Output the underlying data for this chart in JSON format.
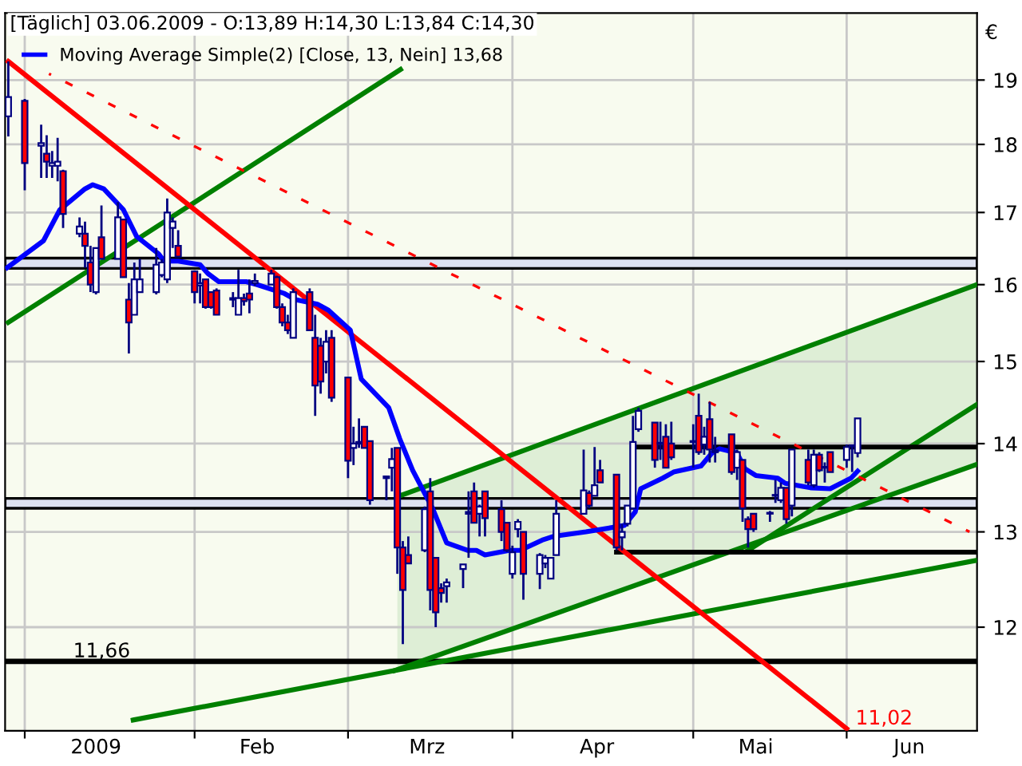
{
  "chart_data": {
    "type": "candlestick",
    "title": "[Täglich] 03.06.2009 - O:13,89 H:14,30 L:13,84 C:14,30",
    "ylabel": "€",
    "x": [
      "2008-12-30",
      "2009-01-02",
      "2009-01-05",
      "2009-01-06",
      "2009-01-07",
      "2009-01-08",
      "2009-01-09",
      "2009-01-12",
      "2009-01-13",
      "2009-01-14",
      "2009-01-15",
      "2009-01-16",
      "2009-01-19",
      "2009-01-20",
      "2009-01-21",
      "2009-01-22",
      "2009-01-23",
      "2009-01-26",
      "2009-01-27",
      "2009-01-28",
      "2009-01-29",
      "2009-01-30",
      "2009-02-02",
      "2009-02-03",
      "2009-02-04",
      "2009-02-05",
      "2009-02-06",
      "2009-02-09",
      "2009-02-10",
      "2009-02-11",
      "2009-02-12",
      "2009-02-13",
      "2009-02-16",
      "2009-02-17",
      "2009-02-18",
      "2009-02-19",
      "2009-02-20",
      "2009-02-23",
      "2009-02-24",
      "2009-02-25",
      "2009-02-26",
      "2009-02-27",
      "2009-03-02",
      "2009-03-03",
      "2009-03-04",
      "2009-03-05",
      "2009-03-06",
      "2009-03-09",
      "2009-03-10",
      "2009-03-11",
      "2009-03-12",
      "2009-03-13",
      "2009-03-16",
      "2009-03-17",
      "2009-03-18",
      "2009-03-19",
      "2009-03-20",
      "2009-03-23",
      "2009-03-24",
      "2009-03-25",
      "2009-03-26",
      "2009-03-27",
      "2009-03-30",
      "2009-03-31",
      "2009-04-01",
      "2009-04-02",
      "2009-04-03",
      "2009-04-06",
      "2009-04-07",
      "2009-04-08",
      "2009-04-09",
      "2009-04-14",
      "2009-04-15",
      "2009-04-16",
      "2009-04-17",
      "2009-04-20",
      "2009-04-21",
      "2009-04-22",
      "2009-04-23",
      "2009-04-24",
      "2009-04-27",
      "2009-04-28",
      "2009-04-29",
      "2009-04-30",
      "2009-05-04",
      "2009-05-05",
      "2009-05-06",
      "2009-05-07",
      "2009-05-08",
      "2009-05-11",
      "2009-05-12",
      "2009-05-13",
      "2009-05-14",
      "2009-05-15",
      "2009-05-18",
      "2009-05-19",
      "2009-05-20",
      "2009-05-21",
      "2009-05-22",
      "2009-05-25",
      "2009-05-26",
      "2009-05-27",
      "2009-05-28",
      "2009-05-29",
      "2009-06-01",
      "2009-06-02",
      "2009-06-03"
    ],
    "ohlc": [
      [
        18.43,
        19.3,
        18.12,
        18.73
      ],
      [
        18.67,
        18.7,
        17.32,
        17.72
      ],
      [
        17.98,
        18.3,
        17.5,
        18.02
      ],
      [
        17.86,
        18.14,
        17.5,
        17.74
      ],
      [
        17.68,
        17.9,
        17.5,
        17.72
      ],
      [
        17.68,
        18.1,
        17.45,
        17.74
      ],
      [
        17.6,
        17.62,
        16.78,
        16.98
      ],
      [
        16.7,
        16.93,
        16.65,
        16.8
      ],
      [
        16.7,
        16.87,
        16.23,
        16.53
      ],
      [
        16.3,
        16.53,
        15.9,
        16.0
      ],
      [
        15.9,
        16.5,
        15.87,
        16.5
      ],
      [
        16.65,
        17.1,
        16.35,
        16.35
      ],
      [
        16.35,
        17.15,
        16.35,
        16.93
      ],
      [
        16.9,
        16.9,
        16.1,
        16.1
      ],
      [
        15.8,
        16.02,
        15.1,
        15.5
      ],
      [
        15.6,
        16.3,
        15.6,
        16.07
      ],
      [
        15.9,
        16.35,
        15.9,
        16.07
      ],
      [
        15.9,
        16.5,
        15.87,
        16.27
      ],
      [
        16.13,
        16.35,
        16.1,
        16.3
      ],
      [
        16.07,
        17.2,
        16.02,
        17.0
      ],
      [
        16.78,
        16.93,
        16.5,
        16.87
      ],
      [
        16.53,
        16.75,
        16.38,
        16.38
      ],
      [
        16.18,
        16.18,
        15.75,
        15.9
      ],
      [
        15.99,
        16.15,
        15.75,
        16.02
      ],
      [
        16.07,
        16.07,
        15.68,
        15.7
      ],
      [
        15.9,
        15.9,
        15.68,
        15.7
      ],
      [
        15.92,
        15.95,
        15.6,
        15.6
      ],
      [
        15.82,
        15.9,
        15.7,
        15.8
      ],
      [
        15.6,
        16.2,
        15.6,
        15.82
      ],
      [
        15.82,
        15.88,
        15.72,
        15.78
      ],
      [
        15.88,
        16.07,
        15.62,
        15.8
      ],
      [
        16.02,
        16.15,
        15.98,
        16.05
      ],
      [
        16.0,
        16.2,
        16.0,
        16.15
      ],
      [
        16.1,
        16.12,
        15.68,
        15.7
      ],
      [
        15.7,
        15.75,
        15.45,
        15.5
      ],
      [
        15.5,
        15.6,
        15.35,
        15.4
      ],
      [
        15.3,
        15.95,
        15.3,
        15.9
      ],
      [
        15.9,
        15.95,
        15.4,
        15.4
      ],
      [
        15.3,
        15.6,
        14.33,
        14.7
      ],
      [
        15.2,
        15.3,
        14.6,
        14.75
      ],
      [
        15.0,
        15.4,
        14.85,
        15.25
      ],
      [
        15.3,
        15.4,
        14.5,
        14.55
      ],
      [
        14.8,
        14.8,
        13.6,
        13.8
      ],
      [
        13.95,
        14.2,
        13.75,
        14.0
      ],
      [
        14.0,
        14.3,
        13.95,
        14.02
      ],
      [
        14.2,
        14.2,
        13.95,
        13.95
      ],
      [
        14.03,
        14.03,
        13.3,
        13.35
      ],
      [
        13.62,
        13.62,
        13.35,
        13.6
      ],
      [
        13.72,
        13.95,
        13.45,
        13.82
      ],
      [
        13.95,
        13.95,
        12.55,
        12.83
      ],
      [
        12.83,
        12.9,
        11.83,
        12.38
      ],
      [
        12.75,
        12.95,
        12.66,
        12.66
      ],
      [
        12.8,
        13.28,
        12.78,
        13.25
      ],
      [
        13.45,
        13.6,
        12.17,
        12.38
      ],
      [
        12.72,
        12.72,
        12.0,
        12.15
      ],
      [
        12.4,
        12.45,
        12.25,
        12.35
      ],
      [
        12.42,
        12.5,
        12.25,
        12.46
      ],
      [
        12.6,
        12.65,
        12.4,
        12.65
      ],
      [
        13.2,
        13.45,
        12.72,
        13.22
      ],
      [
        13.45,
        13.55,
        13.1,
        13.1
      ],
      [
        13.2,
        13.3,
        12.95,
        13.28
      ],
      [
        13.45,
        13.45,
        12.95,
        13.15
      ],
      [
        13.25,
        13.35,
        12.9,
        13.0
      ],
      [
        13.1,
        13.1,
        12.78,
        12.8
      ],
      [
        12.55,
        12.85,
        12.5,
        12.78
      ],
      [
        13.03,
        13.14,
        12.94,
        13.11
      ],
      [
        13.0,
        13.0,
        12.28,
        12.55
      ],
      [
        12.55,
        12.77,
        12.39,
        12.75
      ],
      [
        12.66,
        12.75,
        12.61,
        12.72
      ],
      [
        12.5,
        12.72,
        12.5,
        12.72
      ],
      [
        12.75,
        13.35,
        12.75,
        13.2
      ],
      [
        13.2,
        13.93,
        13.2,
        13.46
      ],
      [
        13.43,
        13.46,
        13.26,
        13.29
      ],
      [
        13.4,
        13.96,
        13.4,
        13.52
      ],
      [
        13.69,
        13.81,
        13.55,
        13.55
      ],
      [
        13.64,
        13.64,
        12.8,
        12.83
      ],
      [
        12.94,
        13.09,
        12.8,
        13.0
      ],
      [
        13.09,
        13.29,
        13.06,
        13.29
      ],
      [
        13.26,
        14.33,
        13.26,
        14.02
      ],
      [
        14.17,
        14.43,
        14.14,
        14.39
      ],
      [
        14.25,
        14.25,
        13.72,
        13.81
      ],
      [
        14.0,
        14.26,
        13.81,
        14.01
      ],
      [
        14.08,
        14.23,
        13.72,
        13.72
      ],
      [
        14.0,
        14.26,
        13.81,
        13.84
      ],
      [
        14.02,
        14.23,
        13.72,
        14.03
      ],
      [
        14.33,
        14.6,
        13.87,
        13.9
      ],
      [
        13.99,
        14.2,
        13.87,
        14.08
      ],
      [
        14.29,
        14.5,
        13.78,
        13.93
      ],
      [
        13.9,
        14.08,
        13.78,
        13.92
      ],
      [
        14.11,
        14.11,
        13.64,
        13.67
      ],
      [
        13.72,
        13.93,
        13.58,
        13.9
      ],
      [
        13.81,
        13.81,
        13.11,
        13.26
      ],
      [
        13.14,
        13.17,
        12.83,
        13.03
      ],
      [
        13.2,
        13.2,
        13.0,
        13.03
      ],
      [
        13.2,
        13.23,
        13.11,
        13.21
      ],
      [
        13.4,
        13.58,
        13.32,
        13.41
      ],
      [
        13.35,
        13.55,
        13.32,
        13.49
      ],
      [
        13.49,
        13.49,
        13.09,
        13.14
      ],
      [
        13.29,
        13.93,
        13.17,
        13.93
      ],
      [
        13.81,
        13.93,
        13.52,
        13.55
      ],
      [
        13.52,
        13.93,
        13.49,
        13.87
      ],
      [
        13.87,
        13.9,
        13.67,
        13.69
      ],
      [
        13.72,
        13.78,
        13.55,
        13.73
      ],
      [
        13.9,
        13.9,
        13.67,
        13.67
      ],
      [
        13.81,
        13.99,
        13.72,
        13.96
      ],
      [
        13.97,
        13.99,
        13.67,
        13.98
      ],
      [
        13.89,
        14.3,
        13.84,
        14.3
      ]
    ],
    "series": [
      {
        "type": "line",
        "color": "#008000",
        "x": [
          "2009-03-11",
          "2009-06-24T19:00"
        ],
        "values": [
          13.39,
          16.0
        ],
        "lower": [
          11.57,
          13.76
        ],
        "upper": [
          13.39,
          16.0
        ]
      },
      {
        "type": "line",
        "color": "#008000",
        "x": [
          "2008-12-30",
          "2009-03-11T14:00"
        ],
        "values": [
          15.5,
          19.17
        ]
      },
      {
        "type": "line",
        "color": "#008000",
        "x": [
          "2009-03-10T12:00",
          "2009-06-24T19:00"
        ],
        "values": [
          11.57,
          13.76
        ]
      },
      {
        "type": "line",
        "color": "#008000",
        "x": [
          "2009-05-14",
          "2009-06-24T19:00"
        ],
        "values": [
          12.8,
          14.47
        ]
      },
      {
        "type": "line",
        "color": "#008000",
        "x": [
          "2009-01-21T19:00",
          "2009-06-24T10:00"
        ],
        "values": [
          11.1,
          12.69
        ]
      },
      {
        "type": "line",
        "color": "#000000",
        "x": [
          "2009-04-23",
          "2009-06-24T19:00"
        ],
        "values": [
          13.96,
          13.96
        ]
      },
      {
        "type": "line",
        "color": "#000000",
        "x": [
          "2009-04-20",
          "2009-06-24T19:00"
        ],
        "values": [
          12.78,
          12.78
        ]
      },
      {
        "type": "line",
        "color": "#ff0000",
        "line_style": "dashed",
        "x": [
          "2009-01-06T10:00",
          "2009-06-23T10:00"
        ],
        "values": [
          19.1,
          13.0
        ]
      },
      {
        "type": "line",
        "color": "#ff0000",
        "x": [
          "2008-12-30",
          "2009-06-01"
        ],
        "values": [
          19.3,
          11.02
        ]
      },
      {
        "type": "line",
        "name": "Moving Average Simple(2) [Close, 13, Nein] 13,68",
        "color": "#0000ff",
        "x": [
          "2008-12-29T19:00",
          "2009-01-05T10:00",
          "2009-01-08T10:00",
          "2009-01-13",
          "2009-01-14T10:00",
          "2009-01-16T10:00",
          "2009-01-20",
          "2009-01-22T10:00",
          "2009-01-26T10:00",
          "2009-01-27T10:00",
          "2009-01-30",
          "2009-02-03",
          "2009-02-04T10:00",
          "2009-02-06T10:00",
          "2009-02-11T10:00",
          "2009-02-13T10:00",
          "2009-02-18T10:00",
          "2009-02-20T10:00",
          "2009-02-24T10:00",
          "2009-02-26T10:00",
          "2009-03-02T10:00",
          "2009-03-04T10:00",
          "2009-03-09T10:00",
          "2009-03-11T10:00",
          "2009-03-13T19:00",
          "2009-03-17T10:00",
          "2009-03-20",
          "2009-03-23T19:00",
          "2009-03-25T10:00",
          "2009-03-27",
          "2009-03-31T10:00",
          "2009-04-02T10:00",
          "2009-04-06T10:00",
          "2009-04-08T10:00",
          "2009-04-14T10:00",
          "2009-04-21T10:00",
          "2009-04-23T10:00",
          "2009-04-24T10:00",
          "2009-04-28T10:00",
          "2009-04-30T10:00",
          "2009-05-05T10:00",
          "2009-05-07T10:00",
          "2009-05-08T19:00",
          "2009-05-12",
          "2009-05-13T10:00",
          "2009-05-15T10:00",
          "2009-05-19T10:00",
          "2009-05-20T19:00",
          "2009-05-25T10:00",
          "2009-05-29",
          "2009-06-01T19:00",
          "2009-06-03"
        ],
        "values": [
          16.23,
          16.6,
          17.04,
          17.34,
          17.4,
          17.34,
          17.04,
          16.66,
          16.42,
          16.32,
          16.32,
          16.27,
          16.15,
          16.04,
          16.04,
          16.0,
          15.88,
          15.8,
          15.74,
          15.66,
          15.4,
          14.78,
          14.43,
          14.06,
          13.69,
          13.26,
          12.88,
          12.8,
          12.8,
          12.75,
          12.8,
          12.8,
          12.91,
          12.95,
          13.0,
          13.07,
          13.22,
          13.48,
          13.6,
          13.67,
          13.74,
          13.89,
          13.94,
          13.89,
          13.71,
          13.63,
          13.6,
          13.54,
          13.49,
          13.48,
          13.6,
          13.68
        ]
      }
    ],
    "ref_lines": [
      {
        "axis": "y",
        "value": 11.66,
        "label": "11,66",
        "color": "#000000"
      }
    ],
    "bands": [
      {
        "axis": "y",
        "from": 16.22,
        "to": 16.36,
        "color": "#dde1f0"
      },
      {
        "axis": "y",
        "from": 13.26,
        "to": 13.37,
        "color": "#dde1f0"
      }
    ],
    "annotations": [
      {
        "text": "11,02",
        "x": "2009-06-01",
        "y": 11.02
      }
    ],
    "log": "y",
    "xlim": [
      "2008-12-29T10:00",
      "2009-06-24T19:00"
    ],
    "xticks": [
      {
        "value": "2009-01-02",
        "label": null
      },
      {
        "value": "2009-01-15",
        "label": "2009"
      },
      {
        "value": "2009-02-02",
        "label": null
      },
      {
        "value": "2009-02-13T10:00",
        "label": "Feb"
      },
      {
        "value": "2009-03-02",
        "label": null
      },
      {
        "value": "2009-03-16T10:00",
        "label": "Mrz"
      },
      {
        "value": "2009-04-01",
        "label": null
      },
      {
        "value": "2009-04-16T10:00",
        "label": "Apr"
      },
      {
        "value": "2009-05-04",
        "label": null
      },
      {
        "value": "2009-05-15T10:00",
        "label": "Mai"
      },
      {
        "value": "2009-06-01",
        "label": null
      },
      {
        "value": "2009-06-12T10:00",
        "label": "Jun"
      }
    ],
    "ylim": [
      11.0,
      20.1
    ],
    "yticks": [
      12,
      13,
      14,
      15,
      16,
      17,
      18,
      19
    ],
    "grid": true,
    "legend": "top left"
  }
}
